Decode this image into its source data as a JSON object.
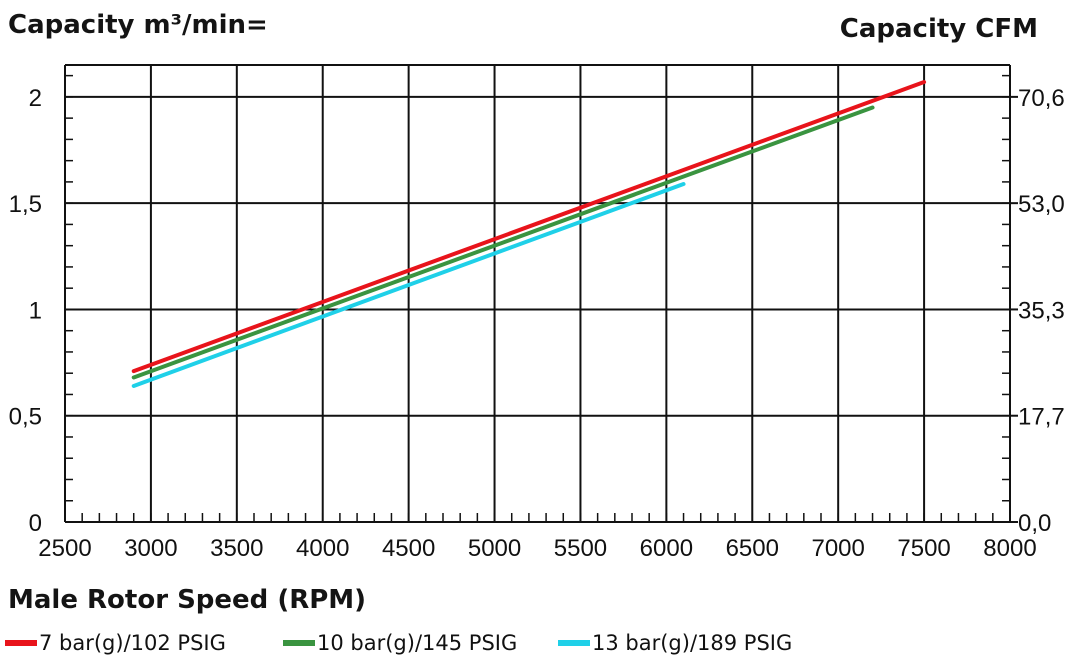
{
  "chart_data": {
    "type": "line",
    "ylabel_left": "Capacity m³/min=",
    "ylabel_right": "Capacity CFM",
    "xlabel": "Male Rotor Speed (RPM)",
    "xlim": [
      2500,
      8000
    ],
    "ylim": [
      0,
      2.15
    ],
    "x_ticks": [
      {
        "value": 2500,
        "label": "2500"
      },
      {
        "value": 3000,
        "label": "3000"
      },
      {
        "value": 3500,
        "label": "3500"
      },
      {
        "value": 4000,
        "label": "4000"
      },
      {
        "value": 4500,
        "label": "4500"
      },
      {
        "value": 5000,
        "label": "5000"
      },
      {
        "value": 5500,
        "label": "5500"
      },
      {
        "value": 6000,
        "label": "6000"
      },
      {
        "value": 6500,
        "label": "6500"
      },
      {
        "value": 7000,
        "label": "7000"
      },
      {
        "value": 7500,
        "label": "7500"
      },
      {
        "value": 8000,
        "label": "8000"
      }
    ],
    "y_ticks_left": [
      {
        "value": 0,
        "label": "0"
      },
      {
        "value": 0.5,
        "label": "0,5"
      },
      {
        "value": 1,
        "label": "1"
      },
      {
        "value": 1.5,
        "label": "1,5"
      },
      {
        "value": 2,
        "label": "2"
      }
    ],
    "y_ticks_right": [
      {
        "value": 0,
        "label": "0,0"
      },
      {
        "value": 0.5,
        "label": "17,7"
      },
      {
        "value": 1,
        "label": "35,3"
      },
      {
        "value": 1.5,
        "label": "53,0"
      },
      {
        "value": 2,
        "label": "70,6"
      }
    ],
    "grid": true,
    "legend_position": "bottom",
    "series": [
      {
        "name": "7 bar(g)/102 PSIG",
        "color": "#e8141b",
        "x": [
          2900,
          7500
        ],
        "y": [
          0.71,
          2.07
        ]
      },
      {
        "name": "10 bar(g)/145 PSIG",
        "color": "#3a9440",
        "x": [
          2900,
          7200
        ],
        "y": [
          0.68,
          1.95
        ]
      },
      {
        "name": "13 bar(g)/189 PSIG",
        "color": "#1fd0e8",
        "x": [
          2900,
          6100
        ],
        "y": [
          0.64,
          1.59
        ]
      }
    ]
  }
}
